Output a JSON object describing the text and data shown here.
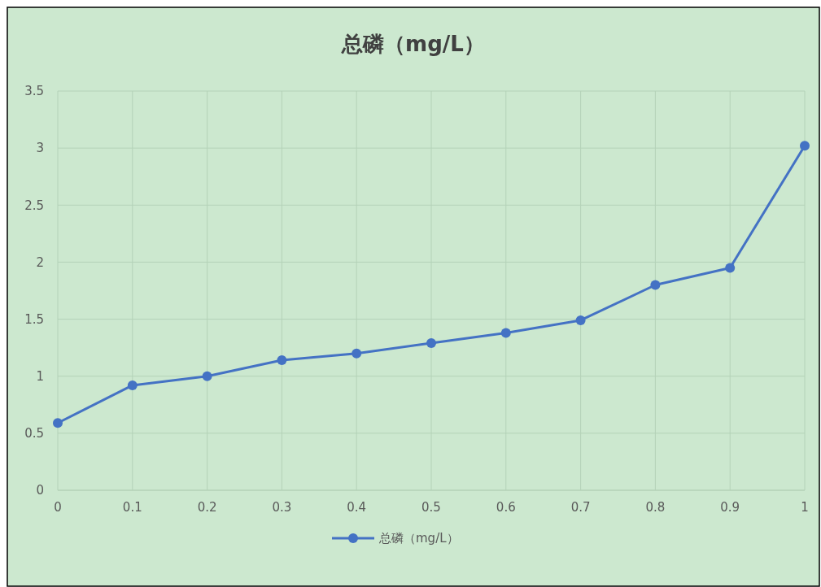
{
  "chart_data": {
    "type": "line",
    "title": "总磷（mg/L）",
    "x": [
      0,
      0.1,
      0.2,
      0.3,
      0.4,
      0.5,
      0.6,
      0.7,
      0.8,
      0.9,
      1
    ],
    "series": [
      {
        "name": "总磷（mg/L）",
        "color": "#4472c4",
        "values": [
          0.59,
          0.92,
          1.0,
          1.14,
          1.2,
          1.29,
          1.38,
          1.49,
          1.8,
          1.95,
          3.02
        ]
      }
    ],
    "xlim": [
      0,
      1
    ],
    "xticks": [
      0,
      0.1,
      0.2,
      0.3,
      0.4,
      0.5,
      0.6,
      0.7,
      0.8,
      0.9,
      1
    ],
    "ylim": [
      0,
      3.5
    ],
    "yticks": [
      0,
      0.5,
      1,
      1.5,
      2,
      2.5,
      3,
      3.5
    ],
    "grid": true,
    "legend": "bottom",
    "marker": "circle",
    "line_style": "solid"
  }
}
